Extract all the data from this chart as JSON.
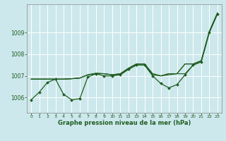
{
  "background_color": "#cce8ec",
  "grid_color": "#ffffff",
  "line_color": "#1f5c1f",
  "xlabel": "Graphe pression niveau de la mer (hPa)",
  "xlim": [
    -0.5,
    23.5
  ],
  "ylim": [
    1005.3,
    1010.3
  ],
  "yticks": [
    1006,
    1007,
    1008,
    1009
  ],
  "xticks": [
    0,
    1,
    2,
    3,
    4,
    5,
    6,
    7,
    8,
    9,
    10,
    11,
    12,
    13,
    14,
    15,
    16,
    17,
    18,
    19,
    20,
    21,
    22,
    23
  ],
  "series1_y": [
    1005.9,
    1006.25,
    1006.7,
    1006.85,
    1006.15,
    1005.9,
    1005.95,
    1006.95,
    1007.1,
    1007.0,
    1007.0,
    1007.05,
    1007.3,
    1007.5,
    1007.5,
    1007.0,
    1006.65,
    1006.45,
    1006.6,
    1007.05,
    1007.5,
    1007.65,
    1009.0,
    1009.85
  ],
  "series2_y": [
    1006.85,
    1006.85,
    1006.85,
    1006.85,
    1006.85,
    1006.87,
    1006.9,
    1007.05,
    1007.1,
    1007.1,
    1007.05,
    1007.05,
    1007.3,
    1007.5,
    1007.5,
    1007.05,
    1007.0,
    1007.05,
    1007.1,
    1007.1,
    1007.5,
    1007.65,
    1009.0,
    1009.85
  ],
  "series3_y": [
    1006.85,
    1006.85,
    1006.85,
    1006.85,
    1006.85,
    1006.87,
    1006.9,
    1007.05,
    1007.12,
    1007.1,
    1007.05,
    1007.1,
    1007.35,
    1007.55,
    1007.55,
    1007.1,
    1007.0,
    1007.1,
    1007.1,
    1007.55,
    1007.55,
    1007.7,
    1009.05,
    1009.9
  ],
  "series4_y": [
    1006.85,
    1006.85,
    1006.85,
    1006.85,
    1006.85,
    1006.87,
    1006.9,
    1007.05,
    1007.12,
    1007.1,
    1007.05,
    1007.1,
    1007.35,
    1007.55,
    1007.55,
    1007.1,
    1007.0,
    1007.1,
    1007.1,
    1007.55,
    1007.55,
    1007.7,
    1009.05,
    1009.9
  ]
}
